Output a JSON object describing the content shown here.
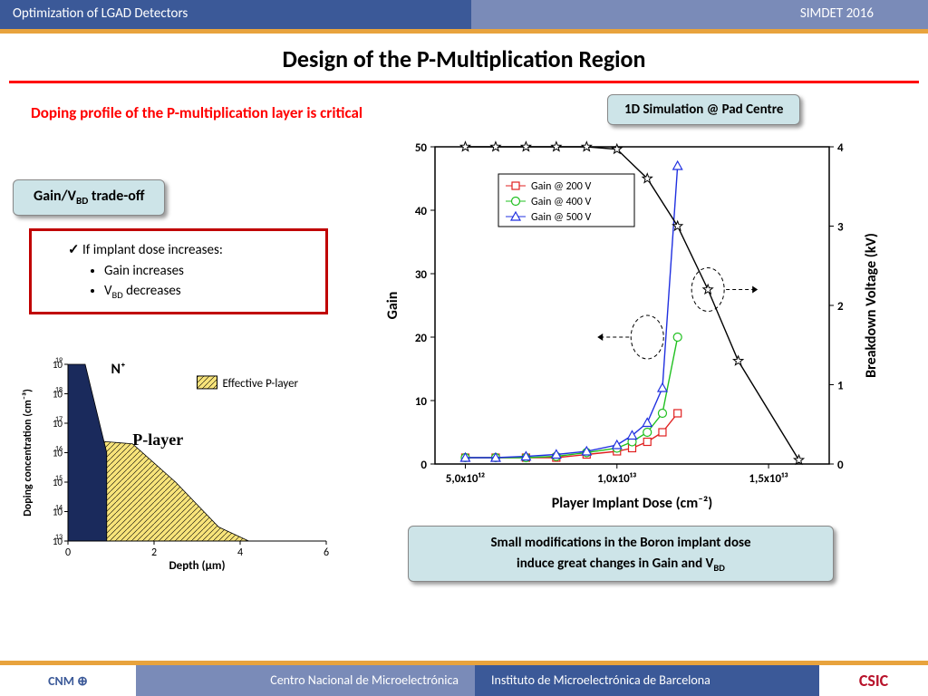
{
  "header": {
    "left": "Optimization of LGAD Detectors",
    "right": "SIMDET 2016"
  },
  "title": "Design of the P-Multiplication Region",
  "doping_label": "Doping profile of the P-multiplication layer is critical",
  "sim_callout": "1D Simulation @ Pad Centre",
  "gain_callout_pre": "Gain/V",
  "gain_callout_sub": "BD",
  "gain_callout_post": " trade-off",
  "redbox": {
    "head": "If implant dose increases:",
    "b1": "Gain increases",
    "b2_pre": "V",
    "b2_sub": "BD",
    "b2_post": " decreases"
  },
  "conclusion": {
    "l1": "Small modifications in the Boron implant dose",
    "l2_pre": "induce great changes in Gain and V",
    "l2_sub": "BD"
  },
  "footer": {
    "left_logo": "CNM ⊕",
    "mid1": "Centro Nacional de Microelectrónica",
    "mid2": "Instituto de Microelectrónica de Barcelona",
    "right_logo": "CSIC"
  },
  "doping_chart": {
    "type": "area",
    "xlabel": "Depth (µm)",
    "ylabel": "Doping concentration (cm⁻³)",
    "xlim": [
      0,
      6
    ],
    "ylim_exp": [
      13,
      19
    ],
    "xtick": [
      0,
      2,
      4,
      6
    ],
    "ytick_exp": [
      13,
      14,
      15,
      16,
      17,
      18,
      19
    ],
    "nplus_label": "N⁺",
    "player_label": "P-layer",
    "legend": "Effective P-layer",
    "nplus_color": "#1a2a5c",
    "player_fill": "#f8e47a",
    "player_hatch": "#000",
    "nplus_pts": [
      [
        0,
        1e+19
      ],
      [
        0.4,
        1e+19
      ],
      [
        0.9,
        1e+16
      ]
    ],
    "player_pts": [
      [
        0,
        3e+16
      ],
      [
        1.5,
        2e+16
      ],
      [
        2.5,
        1000000000000000.0
      ],
      [
        3.5,
        30000000000000.0
      ],
      [
        4.2,
        10000000000000.0
      ]
    ],
    "label_fontsize": 12,
    "bg": "#ffffff"
  },
  "main_chart": {
    "type": "line_dual_axis",
    "xlabel": "Player Implant Dose (cm⁻²)",
    "ylabel_left": "Gain",
    "ylabel_right": "Breakdown Voltage (kV)",
    "xtick_labels": [
      "5,0x10¹²",
      "1,0x10¹³",
      "1,5x10¹³"
    ],
    "xlim": [
      4000000000000.0,
      17000000000000.0
    ],
    "ylim_left": [
      0,
      50
    ],
    "ytick_left": [
      0,
      10,
      20,
      30,
      40,
      50
    ],
    "ylim_right": [
      0,
      4
    ],
    "ytick_right": [
      0,
      1,
      2,
      3,
      4
    ],
    "legend": [
      "Gain @ 200 V",
      "Gain @ 400 V",
      "Gain @ 500 V"
    ],
    "series": {
      "gain200": {
        "color": "#e02020",
        "marker": "square",
        "x": [
          5000000000000.0,
          6000000000000.0,
          7000000000000.0,
          8000000000000.0,
          9000000000000.0,
          10000000000000.0,
          10500000000000.0,
          11000000000000.0,
          11500000000000.0,
          12000000000000.0
        ],
        "y": [
          1,
          1,
          1,
          1,
          1.5,
          2,
          2.5,
          3.5,
          5,
          8
        ]
      },
      "gain400": {
        "color": "#20c020",
        "marker": "circle",
        "x": [
          5000000000000.0,
          6000000000000.0,
          7000000000000.0,
          8000000000000.0,
          9000000000000.0,
          10000000000000.0,
          10500000000000.0,
          11000000000000.0,
          11500000000000.0,
          12000000000000.0
        ],
        "y": [
          1,
          1,
          1,
          1.2,
          1.8,
          2.5,
          3.5,
          5,
          8,
          20
        ]
      },
      "gain500": {
        "color": "#2030e0",
        "marker": "triangle",
        "x": [
          5000000000000.0,
          6000000000000.0,
          7000000000000.0,
          8000000000000.0,
          9000000000000.0,
          10000000000000.0,
          10500000000000.0,
          11000000000000.0,
          11500000000000.0,
          12000000000000.0
        ],
        "y": [
          1,
          1,
          1.2,
          1.5,
          2,
          3,
          4.5,
          6.5,
          12,
          47
        ]
      },
      "vbd": {
        "color": "#000000",
        "marker": "star",
        "x": [
          5000000000000.0,
          6000000000000.0,
          7000000000000.0,
          8000000000000.0,
          9000000000000.0,
          10000000000000.0,
          11000000000000.0,
          12000000000000.0,
          13000000000000.0,
          14000000000000.0,
          16000000000000.0
        ],
        "y_right": [
          4,
          4,
          4,
          4,
          4,
          3.97,
          3.6,
          3.0,
          2.2,
          1.3,
          0.05
        ]
      }
    },
    "line_width": 1.4,
    "marker_size": 7,
    "label_fontsize": 16,
    "tick_fontsize": 13,
    "bg": "#ffffff",
    "box": "on"
  }
}
